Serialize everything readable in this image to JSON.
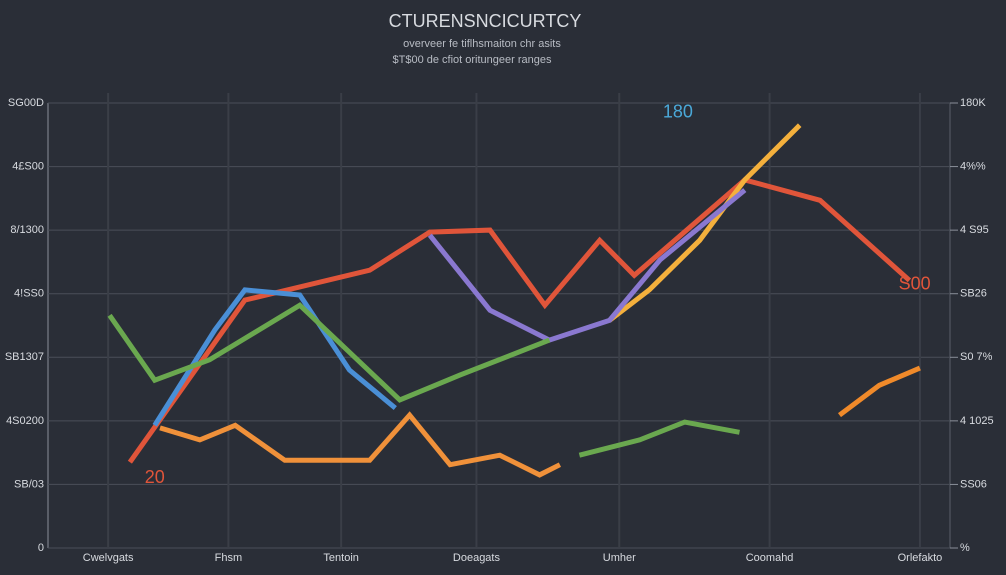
{
  "chart_data": {
    "type": "line",
    "title": "CTURENSNCICURTCY",
    "subtitle": [
      "overveer fe tiflhsmaiton chr asits",
      "$T$00 de cfiot oritungeer ranges"
    ],
    "xlim": [
      0,
      12
    ],
    "xticks": [
      {
        "value": 0.8,
        "label": "Cwelvgats"
      },
      {
        "value": 2.4,
        "label": "Fhsm"
      },
      {
        "value": 3.9,
        "label": "Tentoin"
      },
      {
        "value": 5.7,
        "label": "Doeagats"
      },
      {
        "value": 7.6,
        "label": "Umher"
      },
      {
        "value": 9.6,
        "label": "Coomahd"
      },
      {
        "value": 11.6,
        "label": "Orlefakto"
      }
    ],
    "ylim": [
      0,
      7
    ],
    "yticks": [
      0,
      {
        "value": 1,
        "label": "SB/03"
      },
      {
        "value": 2,
        "label": "4S0200"
      },
      {
        "value": 3,
        "label": "SB1307"
      },
      {
        "value": 4,
        "label": "4!SS0"
      },
      {
        "value": 5,
        "label": "8/1300"
      },
      {
        "value": 6,
        "label": "4£S00"
      },
      {
        "value": 7,
        "label": "SG00D"
      }
    ],
    "y2lim": [
      0,
      7
    ],
    "y2ticks": [
      {
        "value": 0,
        "label": "%"
      },
      {
        "value": 1,
        "label": "SS06"
      },
      {
        "value": 2,
        "label": "4 1025"
      },
      {
        "value": 3,
        "label": "S0 7%"
      },
      {
        "value": 4,
        "label": "SB26"
      },
      {
        "value": 5,
        "label": "4 S95"
      },
      {
        "value": 6,
        "label": "4%%"
      },
      {
        "value": 7,
        "label": "180K"
      }
    ],
    "grid": true,
    "series": [
      {
        "color": "#e0553a",
        "x": [
          1.09,
          2.62,
          4.28,
          5.08,
          5.88,
          6.61,
          7.34,
          7.8,
          9.27,
          10.27,
          11.46
        ],
        "values": [
          1.35,
          3.9,
          4.37,
          4.97,
          5.0,
          3.82,
          4.84,
          4.29,
          5.79,
          5.47,
          4.21
        ]
      },
      {
        "color": "#f0913a",
        "x": [
          1.49,
          2.02,
          2.49,
          3.15,
          4.28,
          4.81,
          5.35,
          6.01,
          6.54,
          6.81
        ],
        "values": [
          1.89,
          1.7,
          1.93,
          1.38,
          1.38,
          2.09,
          1.31,
          1.46,
          1.15,
          1.31
        ]
      },
      {
        "color": "#f4b03c",
        "x": [
          7.47,
          8.0,
          8.67,
          9.27,
          10.0
        ],
        "values": [
          3.58,
          4.06,
          4.84,
          5.79,
          6.65
        ]
      },
      {
        "color": "#4a8fd6",
        "x": [
          1.42,
          2.22,
          2.62,
          3.35,
          4.01,
          4.62
        ],
        "values": [
          1.93,
          3.43,
          4.06,
          3.98,
          2.8,
          2.2
        ]
      },
      {
        "color": "#8a78d0",
        "x": [
          5.08,
          5.88,
          6.67,
          7.47,
          8.14,
          8.94,
          9.27
        ],
        "values": [
          4.92,
          3.74,
          3.27,
          3.58,
          4.53,
          5.31,
          5.63
        ]
      },
      {
        "color": "#6aa84f",
        "x": [
          0.82,
          1.42,
          2.15,
          3.35,
          4.68,
          5.48,
          6.67,
          6.9,
          7.07,
          7.87,
          8.47,
          9.2
        ],
        "values": [
          3.66,
          2.64,
          2.96,
          3.82,
          2.33,
          2.72,
          3.27,
          null,
          1.46,
          1.7,
          1.98,
          1.82
        ]
      },
      {
        "color": "#f08a2a",
        "x": [
          10.53,
          11.06,
          11.6
        ],
        "values": [
          2.09,
          2.56,
          2.83
        ]
      }
    ],
    "annotations": [
      {
        "text": "180",
        "x": 8.38,
        "y": 6.85,
        "color": "#4aa8d8"
      },
      {
        "text": "20",
        "x": 1.42,
        "y": 1.1,
        "color": "#e0553a"
      },
      {
        "text": "S00",
        "x": 11.53,
        "y": 4.14,
        "color": "#e0553a"
      }
    ]
  }
}
